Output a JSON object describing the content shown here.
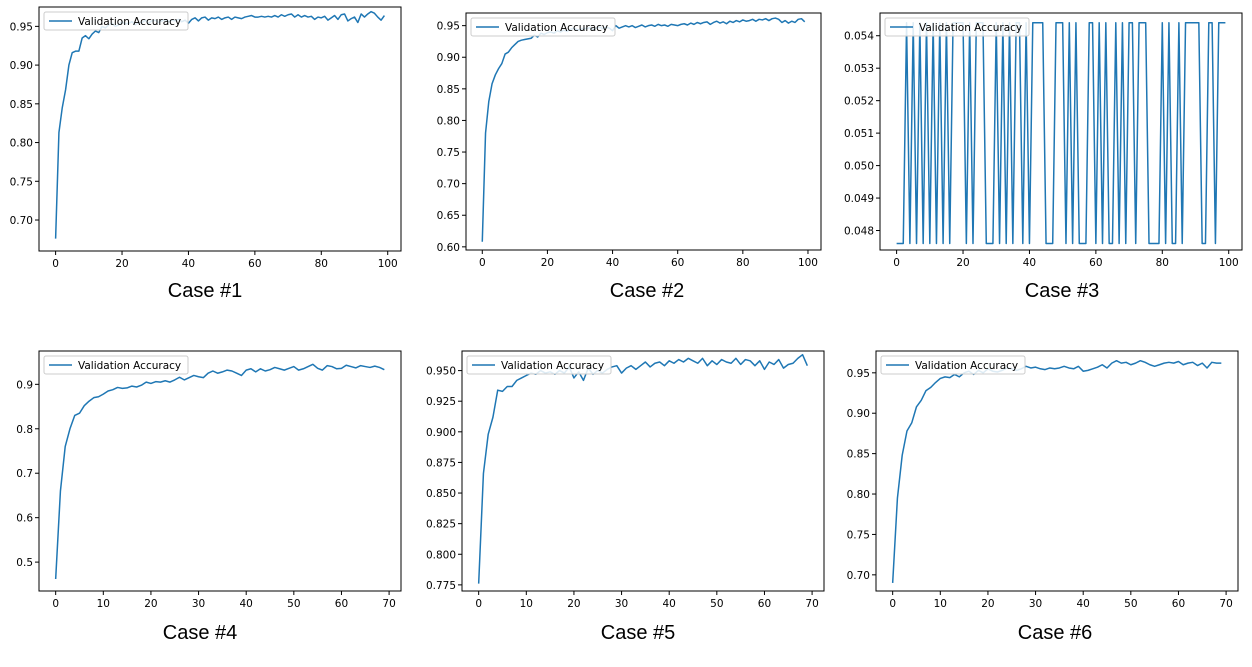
{
  "figure": {
    "case_labels": [
      "Case #1",
      "Case #2",
      "Case #3",
      "Case #4",
      "Case #5",
      "Case #6"
    ]
  },
  "colors": {
    "series": "#1f77b4",
    "axis": "#000000",
    "legend_border": "#cccccc"
  },
  "chart_data": [
    {
      "type": "line",
      "legend_loc": "upper-left",
      "grid": false,
      "xlim": [
        -5,
        104
      ],
      "ylim": [
        0.66,
        0.975
      ],
      "xticks": [
        0,
        20,
        40,
        60,
        80,
        100
      ],
      "yticks": [
        0.7,
        0.75,
        0.8,
        0.85,
        0.9,
        0.95
      ],
      "ytick_labels": [
        "0.70",
        "0.75",
        "0.80",
        "0.85",
        "0.90",
        "0.95"
      ],
      "series": [
        {
          "name": "Validation Accuracy",
          "y": [
            0.676,
            0.813,
            0.845,
            0.868,
            0.9,
            0.916,
            0.918,
            0.918,
            0.935,
            0.938,
            0.934,
            0.94,
            0.944,
            0.942,
            0.95,
            0.948,
            0.952,
            0.954,
            0.95,
            0.952,
            0.956,
            0.953,
            0.954,
            0.956,
            0.952,
            0.955,
            0.955,
            0.958,
            0.954,
            0.957,
            0.958,
            0.955,
            0.957,
            0.959,
            0.956,
            0.958,
            0.957,
            0.959,
            0.956,
            0.958,
            0.954,
            0.959,
            0.961,
            0.957,
            0.961,
            0.962,
            0.958,
            0.961,
            0.96,
            0.962,
            0.959,
            0.961,
            0.962,
            0.959,
            0.962,
            0.961,
            0.96,
            0.962,
            0.963,
            0.964,
            0.962,
            0.962,
            0.963,
            0.962,
            0.963,
            0.962,
            0.964,
            0.962,
            0.965,
            0.963,
            0.965,
            0.966,
            0.962,
            0.965,
            0.962,
            0.964,
            0.962,
            0.963,
            0.959,
            0.962,
            0.961,
            0.963,
            0.958,
            0.961,
            0.964,
            0.959,
            0.965,
            0.966,
            0.957,
            0.96,
            0.962,
            0.955,
            0.966,
            0.962,
            0.966,
            0.969,
            0.967,
            0.962,
            0.958,
            0.964
          ]
        }
      ]
    },
    {
      "type": "line",
      "legend_loc": "upper-left",
      "grid": false,
      "xlim": [
        -5,
        104
      ],
      "ylim": [
        0.595,
        0.97
      ],
      "xticks": [
        0,
        20,
        40,
        60,
        80,
        100
      ],
      "yticks": [
        0.6,
        0.65,
        0.7,
        0.75,
        0.8,
        0.85,
        0.9,
        0.95
      ],
      "ytick_labels": [
        "0.60",
        "0.65",
        "0.70",
        "0.75",
        "0.80",
        "0.85",
        "0.90",
        "0.95"
      ],
      "series": [
        {
          "name": "Validation Accuracy",
          "y": [
            0.608,
            0.78,
            0.83,
            0.858,
            0.872,
            0.882,
            0.89,
            0.905,
            0.908,
            0.915,
            0.92,
            0.925,
            0.927,
            0.928,
            0.929,
            0.93,
            0.935,
            0.932,
            0.938,
            0.936,
            0.939,
            0.94,
            0.938,
            0.942,
            0.94,
            0.943,
            0.941,
            0.944,
            0.946,
            0.944,
            0.943,
            0.946,
            0.945,
            0.947,
            0.944,
            0.946,
            0.948,
            0.945,
            0.948,
            0.946,
            0.942,
            0.95,
            0.946,
            0.948,
            0.95,
            0.948,
            0.95,
            0.947,
            0.949,
            0.951,
            0.948,
            0.95,
            0.951,
            0.949,
            0.952,
            0.95,
            0.951,
            0.949,
            0.952,
            0.951,
            0.95,
            0.952,
            0.953,
            0.951,
            0.954,
            0.952,
            0.955,
            0.953,
            0.955,
            0.956,
            0.952,
            0.955,
            0.957,
            0.954,
            0.956,
            0.953,
            0.957,
            0.955,
            0.958,
            0.956,
            0.959,
            0.957,
            0.958,
            0.96,
            0.957,
            0.96,
            0.959,
            0.961,
            0.958,
            0.961,
            0.962,
            0.96,
            0.955,
            0.958,
            0.954,
            0.957,
            0.955,
            0.96,
            0.961,
            0.956
          ]
        }
      ]
    },
    {
      "type": "line",
      "legend_loc": "upper-left",
      "grid": false,
      "xlim": [
        -5,
        104
      ],
      "ylim": [
        0.0474,
        0.0547
      ],
      "xticks": [
        0,
        20,
        40,
        60,
        80,
        100
      ],
      "yticks": [
        0.048,
        0.049,
        0.05,
        0.051,
        0.052,
        0.053,
        0.054
      ],
      "ytick_labels": [
        "0.048",
        "0.049",
        "0.050",
        "0.051",
        "0.052",
        "0.053",
        "0.054"
      ],
      "series": [
        {
          "name": "Validation Accuracy",
          "y": [
            0.0476,
            0.0476,
            0.0476,
            0.0544,
            0.0476,
            0.0544,
            0.0476,
            0.0544,
            0.0476,
            0.0544,
            0.0476,
            0.0544,
            0.0476,
            0.0544,
            0.0476,
            0.0544,
            0.0476,
            0.0544,
            0.0544,
            0.0544,
            0.0544,
            0.0476,
            0.0544,
            0.0476,
            0.0544,
            0.0544,
            0.0544,
            0.0476,
            0.0476,
            0.0476,
            0.0544,
            0.0476,
            0.0544,
            0.0476,
            0.0544,
            0.0476,
            0.0544,
            0.0544,
            0.0476,
            0.0544,
            0.0476,
            0.0544,
            0.0544,
            0.0544,
            0.0544,
            0.0476,
            0.0476,
            0.0476,
            0.0544,
            0.0544,
            0.0544,
            0.0476,
            0.0544,
            0.0476,
            0.0544,
            0.0476,
            0.0476,
            0.0476,
            0.0544,
            0.0544,
            0.0476,
            0.0544,
            0.0476,
            0.0544,
            0.0476,
            0.0476,
            0.0544,
            0.0476,
            0.0544,
            0.0476,
            0.0544,
            0.0544,
            0.0476,
            0.0544,
            0.0544,
            0.0544,
            0.0476,
            0.0476,
            0.0476,
            0.0476,
            0.0544,
            0.0476,
            0.0544,
            0.0476,
            0.0476,
            0.0544,
            0.0476,
            0.0544,
            0.0544,
            0.0544,
            0.0544,
            0.0544,
            0.0476,
            0.0476,
            0.0544,
            0.0544,
            0.0476,
            0.0544,
            0.0544,
            0.0544
          ]
        }
      ]
    },
    {
      "type": "line",
      "legend_loc": "upper-left",
      "grid": false,
      "xlim": [
        -3.5,
        72.5
      ],
      "ylim": [
        0.435,
        0.975
      ],
      "xticks": [
        0,
        10,
        20,
        30,
        40,
        50,
        60,
        70
      ],
      "yticks": [
        0.5,
        0.6,
        0.7,
        0.8,
        0.9
      ],
      "ytick_labels": [
        "0.5",
        "0.6",
        "0.7",
        "0.8",
        "0.9"
      ],
      "series": [
        {
          "name": "Validation Accuracy",
          "y": [
            0.462,
            0.66,
            0.76,
            0.8,
            0.83,
            0.835,
            0.852,
            0.862,
            0.87,
            0.872,
            0.878,
            0.885,
            0.888,
            0.893,
            0.891,
            0.892,
            0.896,
            0.894,
            0.898,
            0.905,
            0.902,
            0.906,
            0.905,
            0.908,
            0.905,
            0.91,
            0.916,
            0.91,
            0.915,
            0.92,
            0.917,
            0.915,
            0.925,
            0.93,
            0.925,
            0.928,
            0.932,
            0.93,
            0.925,
            0.92,
            0.932,
            0.935,
            0.928,
            0.935,
            0.93,
            0.933,
            0.938,
            0.935,
            0.932,
            0.936,
            0.94,
            0.932,
            0.935,
            0.94,
            0.945,
            0.936,
            0.932,
            0.942,
            0.94,
            0.935,
            0.936,
            0.943,
            0.94,
            0.937,
            0.942,
            0.94,
            0.938,
            0.941,
            0.938,
            0.933
          ]
        }
      ]
    },
    {
      "type": "line",
      "legend_loc": "upper-left",
      "grid": false,
      "xlim": [
        -3.5,
        72.5
      ],
      "ylim": [
        0.77,
        0.966
      ],
      "xticks": [
        0,
        10,
        20,
        30,
        40,
        50,
        60,
        70
      ],
      "yticks": [
        0.775,
        0.8,
        0.825,
        0.85,
        0.875,
        0.9,
        0.925,
        0.95
      ],
      "ytick_labels": [
        "0.775",
        "0.800",
        "0.825",
        "0.850",
        "0.875",
        "0.900",
        "0.925",
        "0.950"
      ],
      "series": [
        {
          "name": "Validation Accuracy",
          "y": [
            0.776,
            0.866,
            0.898,
            0.912,
            0.934,
            0.933,
            0.937,
            0.937,
            0.942,
            0.944,
            0.946,
            0.948,
            0.947,
            0.95,
            0.948,
            0.949,
            0.947,
            0.95,
            0.948,
            0.953,
            0.944,
            0.949,
            0.942,
            0.952,
            0.947,
            0.95,
            0.948,
            0.951,
            0.953,
            0.954,
            0.948,
            0.952,
            0.954,
            0.951,
            0.954,
            0.957,
            0.953,
            0.956,
            0.957,
            0.954,
            0.958,
            0.956,
            0.959,
            0.957,
            0.96,
            0.958,
            0.956,
            0.96,
            0.954,
            0.958,
            0.955,
            0.959,
            0.957,
            0.956,
            0.96,
            0.955,
            0.959,
            0.958,
            0.954,
            0.958,
            0.951,
            0.957,
            0.955,
            0.959,
            0.952,
            0.955,
            0.956,
            0.96,
            0.963,
            0.954
          ]
        }
      ]
    },
    {
      "type": "line",
      "legend_loc": "upper-left",
      "grid": false,
      "xlim": [
        -3.5,
        72.5
      ],
      "ylim": [
        0.68,
        0.977
      ],
      "xticks": [
        0,
        10,
        20,
        30,
        40,
        50,
        60,
        70
      ],
      "yticks": [
        0.7,
        0.75,
        0.8,
        0.85,
        0.9,
        0.95
      ],
      "ytick_labels": [
        "0.70",
        "0.75",
        "0.80",
        "0.85",
        "0.90",
        "0.95"
      ],
      "series": [
        {
          "name": "Validation Accuracy",
          "y": [
            0.69,
            0.795,
            0.848,
            0.878,
            0.888,
            0.908,
            0.916,
            0.928,
            0.932,
            0.938,
            0.943,
            0.945,
            0.944,
            0.948,
            0.945,
            0.95,
            0.952,
            0.948,
            0.953,
            0.95,
            0.955,
            0.952,
            0.951,
            0.953,
            0.956,
            0.955,
            0.953,
            0.955,
            0.958,
            0.956,
            0.957,
            0.955,
            0.954,
            0.956,
            0.955,
            0.956,
            0.958,
            0.956,
            0.955,
            0.958,
            0.952,
            0.953,
            0.955,
            0.957,
            0.96,
            0.956,
            0.962,
            0.965,
            0.962,
            0.963,
            0.96,
            0.962,
            0.965,
            0.963,
            0.96,
            0.958,
            0.96,
            0.962,
            0.963,
            0.962,
            0.964,
            0.96,
            0.962,
            0.963,
            0.959,
            0.962,
            0.956,
            0.963,
            0.962,
            0.962
          ]
        }
      ]
    }
  ]
}
